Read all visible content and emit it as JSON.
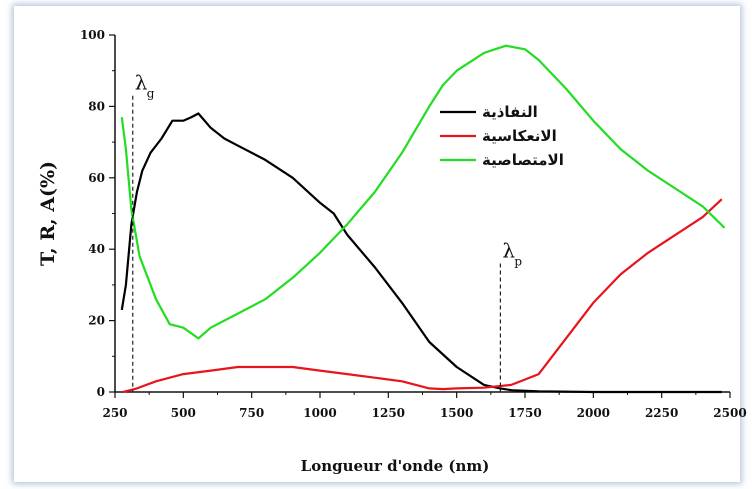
{
  "chart_data": {
    "type": "line",
    "xlabel": "Longueur d'onde (nm)",
    "ylabel": "T, R, A(%)",
    "xlim": [
      250,
      2500
    ],
    "ylim": [
      0,
      100
    ],
    "x_ticks": [
      "250",
      "500",
      "750",
      "1000",
      "1250",
      "1500",
      "1750",
      "2000",
      "2250",
      "2500"
    ],
    "y_ticks": [
      "0",
      "20",
      "40",
      "60",
      "80",
      "100"
    ],
    "series": [
      {
        "name": "النفاذية",
        "color": "#000000",
        "points": [
          [
            275,
            23
          ],
          [
            290,
            30
          ],
          [
            310,
            47
          ],
          [
            330,
            56
          ],
          [
            350,
            62
          ],
          [
            380,
            67
          ],
          [
            420,
            71
          ],
          [
            460,
            76
          ],
          [
            500,
            76
          ],
          [
            530,
            77
          ],
          [
            555,
            78
          ],
          [
            600,
            74
          ],
          [
            650,
            71
          ],
          [
            700,
            69
          ],
          [
            800,
            65
          ],
          [
            900,
            60
          ],
          [
            1000,
            53
          ],
          [
            1050,
            50
          ],
          [
            1100,
            44
          ],
          [
            1200,
            35
          ],
          [
            1300,
            25
          ],
          [
            1400,
            14
          ],
          [
            1500,
            7
          ],
          [
            1600,
            2
          ],
          [
            1660,
            1
          ],
          [
            1700,
            0.5
          ],
          [
            1800,
            0.2
          ],
          [
            2000,
            0
          ],
          [
            2250,
            0
          ],
          [
            2470,
            0
          ]
        ]
      },
      {
        "name": "الانعكاسية",
        "color": "#e8141c",
        "points": [
          [
            280,
            0
          ],
          [
            330,
            1
          ],
          [
            400,
            3
          ],
          [
            500,
            5
          ],
          [
            600,
            6
          ],
          [
            700,
            7
          ],
          [
            800,
            7
          ],
          [
            900,
            7
          ],
          [
            1000,
            6
          ],
          [
            1100,
            5
          ],
          [
            1200,
            4
          ],
          [
            1300,
            3
          ],
          [
            1400,
            1
          ],
          [
            1450,
            0.8
          ],
          [
            1500,
            1
          ],
          [
            1600,
            1.2
          ],
          [
            1700,
            2
          ],
          [
            1800,
            5
          ],
          [
            1900,
            15
          ],
          [
            2000,
            25
          ],
          [
            2100,
            33
          ],
          [
            2200,
            39
          ],
          [
            2300,
            44
          ],
          [
            2400,
            49
          ],
          [
            2470,
            54
          ]
        ]
      },
      {
        "name": "الامتصاصية",
        "color": "#22dd22",
        "points": [
          [
            275,
            77
          ],
          [
            290,
            68
          ],
          [
            310,
            51
          ],
          [
            340,
            38
          ],
          [
            400,
            26
          ],
          [
            450,
            19
          ],
          [
            500,
            18
          ],
          [
            555,
            15
          ],
          [
            600,
            18
          ],
          [
            700,
            22
          ],
          [
            800,
            26
          ],
          [
            900,
            32
          ],
          [
            1000,
            39
          ],
          [
            1100,
            47
          ],
          [
            1200,
            56
          ],
          [
            1300,
            67
          ],
          [
            1400,
            80
          ],
          [
            1450,
            86
          ],
          [
            1500,
            90
          ],
          [
            1600,
            95
          ],
          [
            1680,
            97
          ],
          [
            1750,
            96
          ],
          [
            1800,
            93
          ],
          [
            1900,
            85
          ],
          [
            2000,
            76
          ],
          [
            2100,
            68
          ],
          [
            2200,
            62
          ],
          [
            2300,
            57
          ],
          [
            2400,
            52
          ],
          [
            2480,
            46
          ]
        ]
      }
    ],
    "annotations": [
      {
        "symbol": "λ",
        "subscript": "g",
        "x": 315
      },
      {
        "symbol": "λ",
        "subscript": "p",
        "x": 1660
      }
    ],
    "legend_placement": "top-right",
    "grid": false
  }
}
